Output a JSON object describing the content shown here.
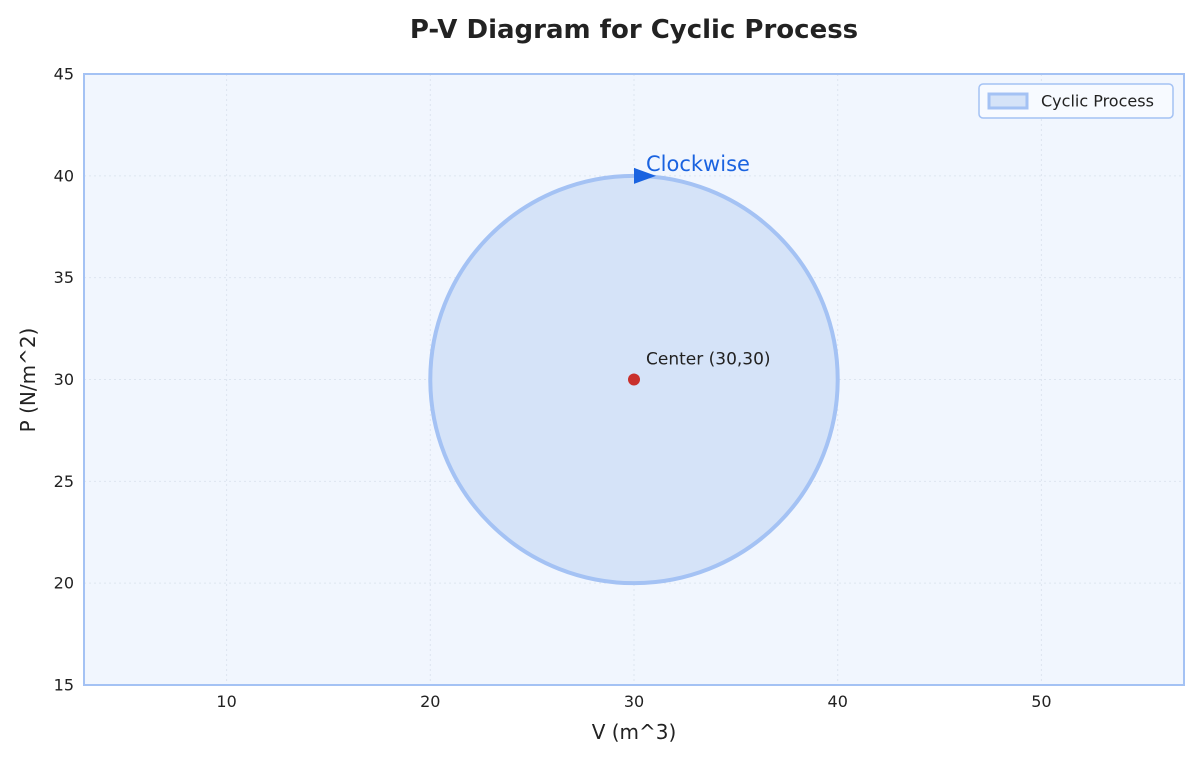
{
  "chart_data": {
    "type": "area",
    "title": "P-V Diagram for Cyclic Process",
    "xlabel": "V (m^3)",
    "ylabel": "P (N/m^2)",
    "xlim": [
      3,
      57
    ],
    "ylim": [
      15,
      45
    ],
    "x_ticks": [
      10,
      20,
      30,
      40,
      50
    ],
    "y_ticks": [
      15,
      20,
      25,
      30,
      35,
      40,
      45
    ],
    "grid": true,
    "legend_position": "top-right",
    "series": [
      {
        "name": "Cyclic Process",
        "shape": "circle",
        "center": {
          "x": 30,
          "y": 30
        },
        "radius": 10,
        "fill_color": "#d5e3f8",
        "edge_color": "#a4c2f4"
      }
    ],
    "annotations": [
      {
        "text": "Center (30,30)",
        "x": 30,
        "y": 30,
        "marker_color": "#c9302c"
      },
      {
        "text": "Clockwise",
        "x": 30,
        "y": 40,
        "arrow_color": "#1a63e0"
      }
    ],
    "colors": {
      "plot_background": "#f1f6fe",
      "frame": "#a4c2f4",
      "grid": "#dde5f0"
    }
  }
}
